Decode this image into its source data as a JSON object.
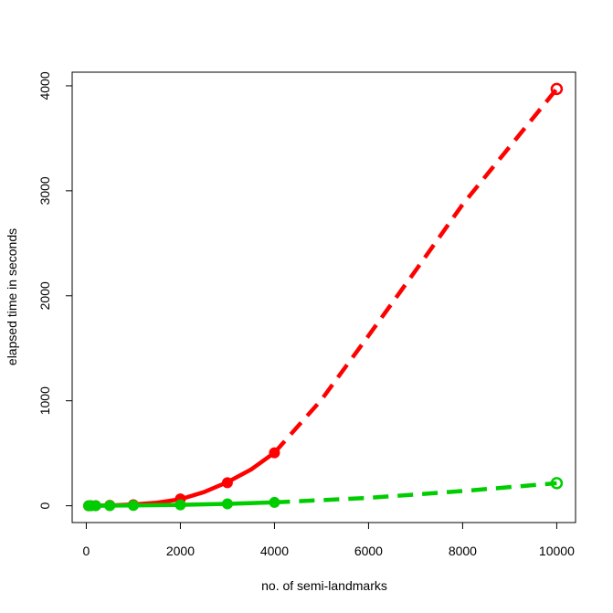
{
  "chart_data": {
    "type": "line",
    "title": "",
    "xlabel": "no. of semi-landmarks",
    "ylabel": "elapsed time in seconds",
    "xlim": [
      -300,
      10400
    ],
    "ylim": [
      -160,
      4130
    ],
    "x_ticks": [
      0,
      2000,
      4000,
      6000,
      8000,
      10000
    ],
    "x_tick_labels": [
      "0",
      "2000",
      "4000",
      "6000",
      "8000",
      "10000"
    ],
    "y_ticks": [
      0,
      1000,
      2000,
      3000,
      4000
    ],
    "y_tick_labels": [
      "0",
      "1000",
      "2000",
      "3000",
      "4000"
    ],
    "grid": false,
    "series": [
      {
        "color": "#ff0000",
        "measured": {
          "x": [
            50,
            100,
            200,
            500,
            1000,
            2000,
            3000,
            4000
          ],
          "y": [
            0.2,
            0.5,
            1.5,
            4,
            10,
            65,
            220,
            505
          ]
        },
        "fit": {
          "x": [
            0,
            500,
            1000,
            1500,
            2000,
            2500,
            3000,
            3500,
            4000
          ],
          "y": [
            0,
            3,
            12,
            30,
            62,
            130,
            225,
            345,
            505
          ]
        },
        "extrapolated": {
          "x": [
            4000,
            5000,
            6000,
            7000,
            8000,
            9000,
            10000
          ],
          "y": [
            505,
            1010,
            1620,
            2240,
            2870,
            3420,
            3970
          ]
        },
        "predicted": {
          "x": 10000,
          "y": 3970
        }
      },
      {
        "color": "#00cd00",
        "measured": {
          "x": [
            50,
            100,
            200,
            500,
            1000,
            2000,
            3000,
            4000
          ],
          "y": [
            0.1,
            0.2,
            0.4,
            1,
            3,
            9,
            18,
            32
          ]
        },
        "fit": {
          "x": [
            0,
            1000,
            2000,
            3000,
            4000
          ],
          "y": [
            0,
            3,
            9,
            18,
            32
          ]
        },
        "extrapolated": {
          "x": [
            4000,
            6000,
            8000,
            10000
          ],
          "y": [
            32,
            75,
            140,
            215
          ]
        },
        "predicted": {
          "x": 10000,
          "y": 215
        }
      }
    ]
  }
}
